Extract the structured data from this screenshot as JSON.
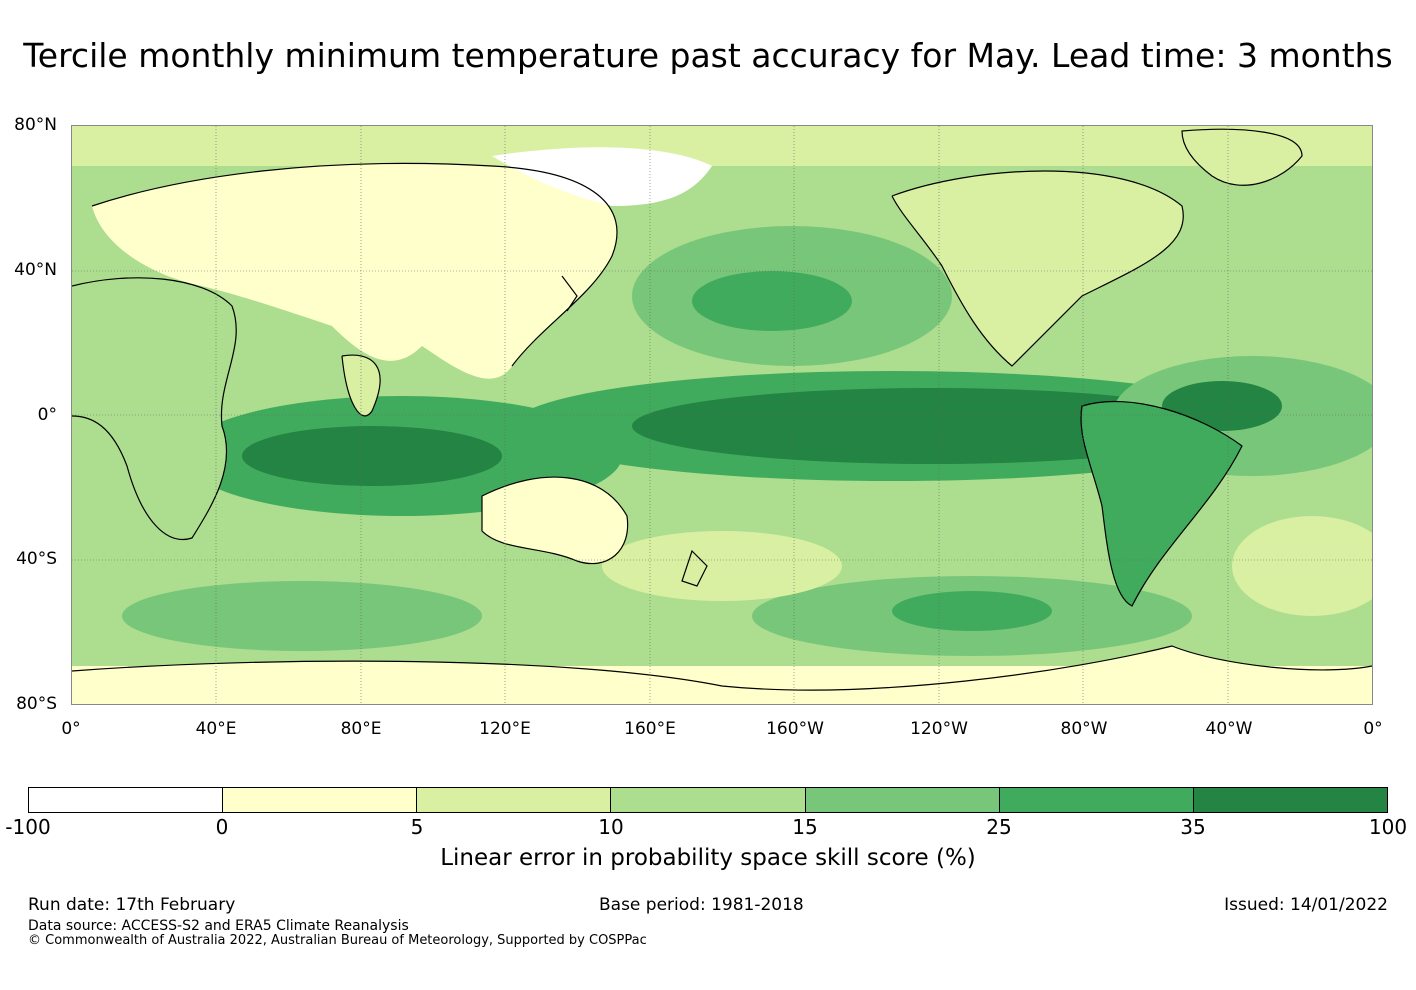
{
  "title": "Tercile monthly minimum temperature past accuracy for May. Lead time: 3 months",
  "map": {
    "lat_labels": [
      "80°N",
      "40°N",
      "0°",
      "40°S",
      "80°S"
    ],
    "lon_labels": [
      "0°",
      "40°E",
      "80°E",
      "120°E",
      "160°E",
      "160°W",
      "120°W",
      "80°W",
      "40°W",
      "0°"
    ],
    "colors": {
      "ocean_base": "#addf8e",
      "land_base": "#ffffcc",
      "level_0": "#ffffff",
      "level_1": "#ffffcc",
      "level_2": "#d9f0a3",
      "level_3": "#addd8e",
      "level_4": "#78c679",
      "level_5": "#41ab5d",
      "level_6": "#238443",
      "coast": "#000000",
      "grid": "#666666"
    }
  },
  "colorbar": {
    "ticks": [
      "-100",
      "0",
      "5",
      "10",
      "15",
      "25",
      "35",
      "100"
    ],
    "colors": [
      "#ffffff",
      "#ffffcc",
      "#d9f0a3",
      "#addd8e",
      "#78c679",
      "#41ab5d",
      "#238443"
    ],
    "label": "Linear error in probability space skill score (%)"
  },
  "footer": {
    "run_date": "Run date: 17th February",
    "base_period": "Base period: 1981-2018",
    "issued": "Issued: 14/01/2022",
    "data_source": "Data source: ACCESS-S2 and ERA5 Climate Reanalysis",
    "copyright": "© Commonwealth of Australia 2022, Australian Bureau of Meteorology, Supported by COSPPac"
  }
}
